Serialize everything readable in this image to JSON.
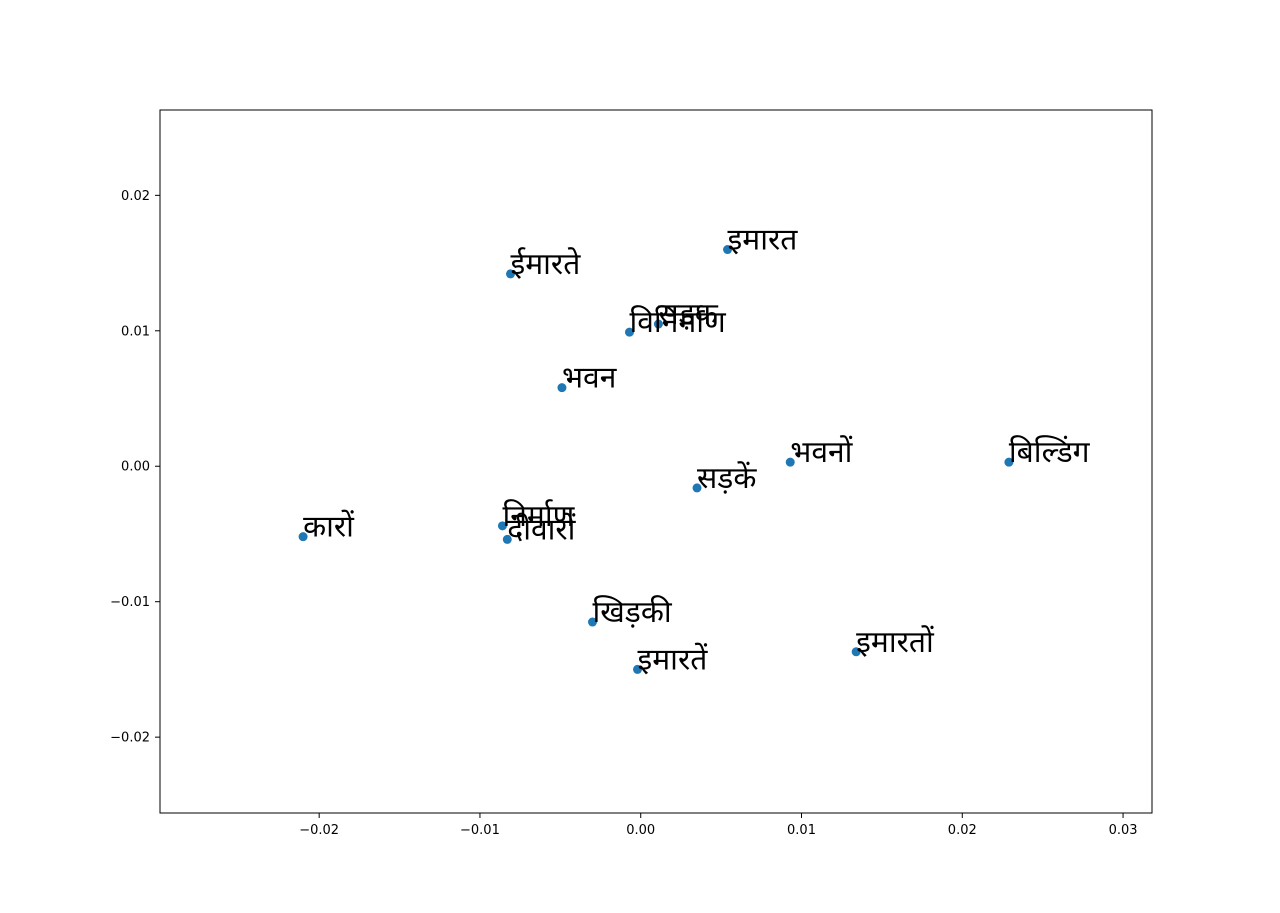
{
  "chart_data": {
    "type": "scatter",
    "title": "",
    "xlabel": "",
    "ylabel": "",
    "xlim": [
      -0.0299,
      0.0318
    ],
    "ylim": [
      -0.0256,
      0.0263
    ],
    "grid": false,
    "point_color": "#1f77b4",
    "x_ticks": [
      {
        "value": -0.02,
        "label": "−0.02"
      },
      {
        "value": -0.01,
        "label": "−0.01"
      },
      {
        "value": 0.0,
        "label": "0.00"
      },
      {
        "value": 0.01,
        "label": "0.01"
      },
      {
        "value": 0.02,
        "label": "0.02"
      },
      {
        "value": 0.03,
        "label": "0.03"
      }
    ],
    "y_ticks": [
      {
        "value": -0.02,
        "label": "−0.02"
      },
      {
        "value": -0.01,
        "label": "−0.01"
      },
      {
        "value": 0.0,
        "label": "0.00"
      },
      {
        "value": 0.01,
        "label": "0.01"
      },
      {
        "value": 0.02,
        "label": "0.02"
      }
    ],
    "points": [
      {
        "label": "इमारत",
        "x": 0.0054,
        "y": 0.016
      },
      {
        "label": "ईमारते",
        "x": -0.0081,
        "y": 0.0142
      },
      {
        "label": "सड़क",
        "x": 0.0011,
        "y": 0.0105
      },
      {
        "label": "विनिर्माण",
        "x": -0.0007,
        "y": 0.0099
      },
      {
        "label": "भवन",
        "x": -0.0049,
        "y": 0.0058
      },
      {
        "label": "भवनों",
        "x": 0.0093,
        "y": 0.0003
      },
      {
        "label": "बिल्डिंग",
        "x": 0.0229,
        "y": 0.0003
      },
      {
        "label": "सड़कें",
        "x": 0.0035,
        "y": -0.0016
      },
      {
        "label": "निर्माण",
        "x": -0.0086,
        "y": -0.0044
      },
      {
        "label": "दीवारों",
        "x": -0.0083,
        "y": -0.0054
      },
      {
        "label": "कारों",
        "x": -0.021,
        "y": -0.0052
      },
      {
        "label": "खिड़की",
        "x": -0.003,
        "y": -0.0115
      },
      {
        "label": "इमारतें",
        "x": -0.0002,
        "y": -0.015
      },
      {
        "label": "इमारतों",
        "x": 0.0134,
        "y": -0.0137
      }
    ]
  }
}
